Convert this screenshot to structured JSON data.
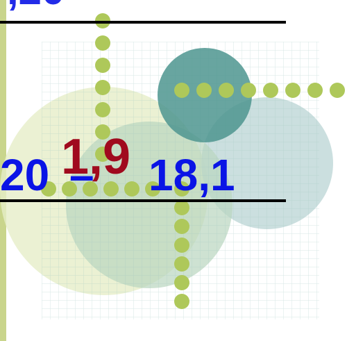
{
  "top_text": ",20",
  "expression": {
    "left": "20",
    "operator": "–",
    "right": "18,1"
  },
  "result": "1,9"
}
